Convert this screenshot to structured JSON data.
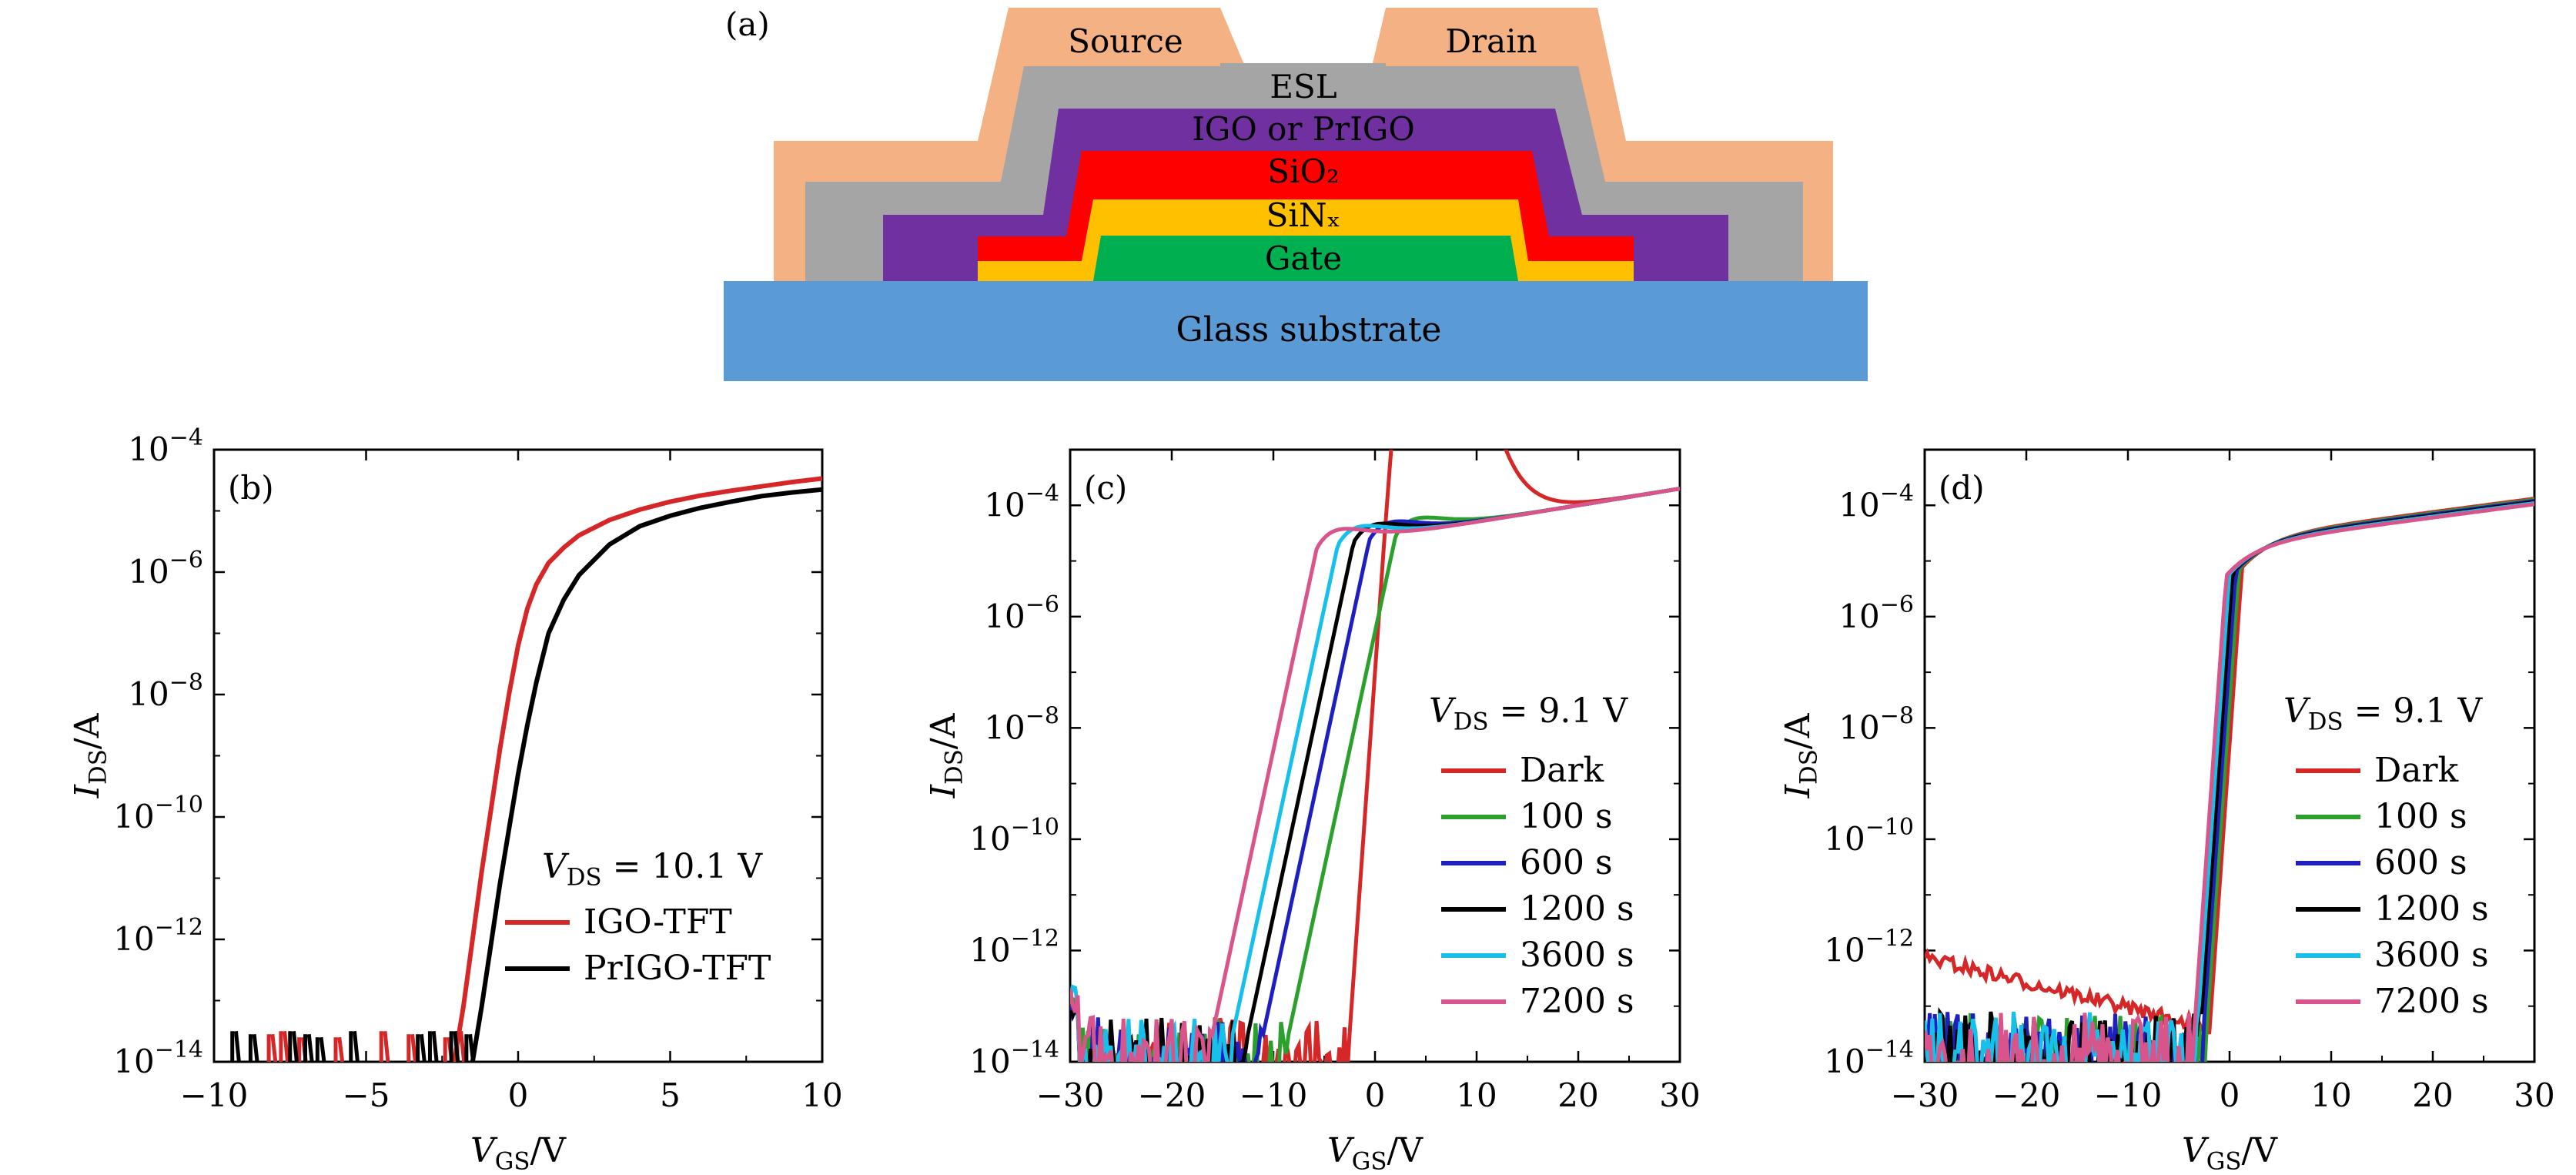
{
  "panel_a": {
    "label": "(a)",
    "layers": [
      {
        "key": "source",
        "text": "Source",
        "color": "#f4b183"
      },
      {
        "key": "drain",
        "text": "Drain",
        "color": "#f4b183"
      },
      {
        "key": "esl",
        "text": "ESL",
        "color": "#a5a5a5"
      },
      {
        "key": "igo",
        "text": "IGO or PrIGO",
        "color": "#7030a0"
      },
      {
        "key": "sio2",
        "text": "SiO₂",
        "color": "#ff0000"
      },
      {
        "key": "sinx",
        "text": "SiNₓ",
        "color": "#ffc000"
      },
      {
        "key": "gate",
        "text": "Gate",
        "color": "#00b050"
      },
      {
        "key": "glass",
        "text": "Glass substrate",
        "color": "#5b9bd5"
      }
    ]
  },
  "chart_data": [
    {
      "type": "line",
      "panel": "(b)",
      "xlabel": "V_GS/V",
      "ylabel": "I_DS/A",
      "y_scale": "log",
      "xlim": [
        -10,
        10
      ],
      "ylim": [
        1e-14,
        0.0001
      ],
      "xticks": [
        -10,
        -5,
        0,
        5,
        10
      ],
      "yticks_exp": [
        -14,
        -12,
        -10,
        -8,
        -6,
        -4
      ],
      "annotation": "V_DS = 10.1 V",
      "legend_position": "bottom-right",
      "series": [
        {
          "name": "IGO-TFT",
          "color": "#d62728",
          "x": [
            -2.1,
            -1.8,
            -1.5,
            -1.2,
            -0.9,
            -0.6,
            -0.3,
            0,
            0.3,
            0.6,
            1,
            1.5,
            2,
            3,
            4,
            5,
            6,
            7,
            8,
            9,
            10
          ],
          "y_exp": [
            -14,
            -13.1,
            -12,
            -10.9,
            -9.9,
            -8.9,
            -8,
            -7.2,
            -6.6,
            -6.2,
            -5.85,
            -5.6,
            -5.4,
            -5.15,
            -4.98,
            -4.85,
            -4.75,
            -4.67,
            -4.6,
            -4.53,
            -4.47
          ],
          "noise_x": [
            -8.2,
            -7.8,
            -7.2,
            -6.0,
            -4.5,
            -3.6,
            -2.4,
            -2.0
          ],
          "noise_exp": [
            -13.55,
            -13.5,
            -13.6,
            -13.6,
            -13.5,
            -13.55,
            -13.6,
            -13.5
          ]
        },
        {
          "name": "PrIGO-TFT",
          "color": "#000000",
          "x": [
            -1.5,
            -1.2,
            -0.9,
            -0.6,
            -0.3,
            0,
            0.3,
            0.6,
            1,
            1.5,
            2,
            3,
            4,
            5,
            6,
            7,
            8,
            9,
            10
          ],
          "y_exp": [
            -14,
            -13.1,
            -12.1,
            -11.1,
            -10.2,
            -9.3,
            -8.5,
            -7.8,
            -7.0,
            -6.45,
            -6.05,
            -5.55,
            -5.25,
            -5.08,
            -4.95,
            -4.85,
            -4.76,
            -4.7,
            -4.65
          ],
          "noise_x": [
            -9.4,
            -8.8,
            -7.5,
            -7.0,
            -6.6,
            -5.5,
            -3.3,
            -2.9,
            -2.2,
            -1.7
          ],
          "noise_exp": [
            -13.5,
            -13.55,
            -13.5,
            -13.55,
            -13.6,
            -13.5,
            -13.55,
            -13.5,
            -13.5,
            -13.55
          ]
        }
      ]
    },
    {
      "type": "line",
      "panel": "(c)",
      "xlabel": "V_GS/V",
      "ylabel": "I_DS/A",
      "y_scale": "log",
      "xlim": [
        -30,
        30
      ],
      "ylim": [
        1e-14,
        0.001
      ],
      "xticks": [
        -30,
        -20,
        -10,
        0,
        10,
        20,
        30
      ],
      "yticks_exp": [
        -14,
        -12,
        -10,
        -8,
        -6,
        -4
      ],
      "annotation": "V_DS = 9.1 V",
      "legend_position": "right",
      "series": [
        {
          "name": "Dark",
          "color": "#d62728",
          "turn_on": -2.5,
          "slope": 2.6,
          "sat": 5.5
        },
        {
          "name": "100 s",
          "color": "#2ca02c",
          "turn_on": -8.5,
          "slope": 0.85,
          "sat": 6
        },
        {
          "name": "600 s",
          "color": "#1f1fbf",
          "turn_on": -11,
          "slope": 0.85,
          "sat": 6.5
        },
        {
          "name": "1200 s",
          "color": "#000000",
          "turn_on": -12.5,
          "slope": 0.85,
          "sat": 7
        },
        {
          "name": "3600 s",
          "color": "#17c0eb",
          "turn_on": -14,
          "slope": 0.85,
          "sat": 7.5
        },
        {
          "name": "7200 s",
          "color": "#d9548a",
          "turn_on": -16,
          "slope": 0.85,
          "sat": 8
        }
      ]
    },
    {
      "type": "line",
      "panel": "(d)",
      "xlabel": "V_GS/V",
      "ylabel": "I_DS/A",
      "y_scale": "log",
      "xlim": [
        -30,
        30
      ],
      "ylim": [
        1e-14,
        0.001
      ],
      "xticks": [
        -30,
        -20,
        -10,
        0,
        10,
        20,
        30
      ],
      "yticks_exp": [
        -14,
        -12,
        -10,
        -8,
        -6,
        -4
      ],
      "annotation": "V_DS = 9.1 V",
      "legend_position": "right",
      "series": [
        {
          "name": "Dark",
          "color": "#d62728",
          "turn_on": -2.0
        },
        {
          "name": "100 s",
          "color": "#2ca02c",
          "turn_on": -2.3
        },
        {
          "name": "600 s",
          "color": "#1f1fbf",
          "turn_on": -2.6
        },
        {
          "name": "1200 s",
          "color": "#000000",
          "turn_on": -2.9
        },
        {
          "name": "3600 s",
          "color": "#17c0eb",
          "turn_on": -3.2
        },
        {
          "name": "7200 s",
          "color": "#d9548a",
          "turn_on": -3.5
        }
      ]
    }
  ]
}
